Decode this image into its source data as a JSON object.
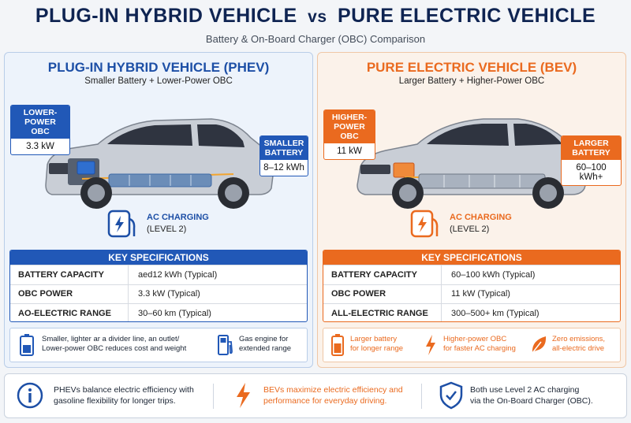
{
  "header": {
    "title_left": "PLUG-IN HYBRID VEHICLE",
    "title_vs": "vs",
    "title_right": "PURE ELECTRIC VEHICLE",
    "subtitle": "Battery & On-Board Charger (OBC) Comparison"
  },
  "phev": {
    "title": "PLUG-IN HYBRID VEHICLE (PHEV)",
    "subtitle": "Smaller Battery + Lower-Power OBC",
    "obc_callout": {
      "line1": "LOWER-POWER",
      "line2": "OBC",
      "value": "3.3 kW"
    },
    "battery_callout": {
      "line1": "SMALLER",
      "line2": "BATTERY",
      "value": "8–12 kWh"
    },
    "charging": {
      "line1": "AC CHARGING",
      "line2": "(LEVEL 2)"
    },
    "specs": {
      "heading": "KEY SPECIFICATIONS",
      "rows": [
        {
          "key": "BATTERY CAPACITY",
          "value": "aed12 kWh (Typical)"
        },
        {
          "key": "OBC POWER",
          "value": "3.3 kW (Typical)"
        },
        {
          "key": "AO-ELECTRIC RANGE",
          "value": "30–60 km (Typical)"
        }
      ]
    },
    "notes": [
      {
        "icon": "battery-icon",
        "line1": "Smaller, lighter ar a divider line, an outlet/",
        "line2": "Lower-power OBC reduces cost and weight"
      },
      {
        "icon": "fuel-pump-icon",
        "line1": "Gas engine for",
        "line2": "extended range"
      }
    ]
  },
  "bev": {
    "title": "PURE ELECTRIC VEHICLE (BEV)",
    "subtitle": "Larger Battery + Higher-Power OBC",
    "obc_callout": {
      "line1": "HIGHER-",
      "line2": "POWER OBC",
      "value": "11 kW"
    },
    "battery_callout": {
      "line1": "LARGER",
      "line2": "BATTERY",
      "value": "60–100 kWh+"
    },
    "charging": {
      "line1": "AC CHARGING",
      "line2": "(LEVEL 2)"
    },
    "specs": {
      "heading": "KEY SPECIFICATIONS",
      "rows": [
        {
          "key": "BATTERY CAPACITY",
          "value": "60–100 kWh (Typical)"
        },
        {
          "key": "OBC POWER",
          "value": "11 kW (Typical)"
        },
        {
          "key": "ALL-ELECTRIC RANGE",
          "value": "300–500+ km (Typical)"
        }
      ]
    },
    "notes": [
      {
        "icon": "battery-icon",
        "line1": "Larger battery",
        "line2": "for longer range"
      },
      {
        "icon": "lightning-icon",
        "line1": "Higher-power OBC",
        "line2": "for faster AC charging"
      },
      {
        "icon": "leaf-icon",
        "line1": "Zero emissions,",
        "line2": "all-electric drive"
      }
    ]
  },
  "footer": [
    {
      "icon": "info-icon",
      "line1": "PHEVs balance electric efficiency with",
      "line2": "gasoline flexibility for longer trips."
    },
    {
      "icon": "lightning-icon",
      "line1": "BEVs maximize electric efficiency and",
      "line2": "performance for everyday driving."
    },
    {
      "icon": "shield-check-icon",
      "line1": "Both use Level 2 AC charging",
      "line2": "via the On-Board Charger (OBC)."
    }
  ],
  "colors": {
    "phev_accent": "#2158b7",
    "bev_accent": "#ea6a1f",
    "title": "#0f2452"
  }
}
